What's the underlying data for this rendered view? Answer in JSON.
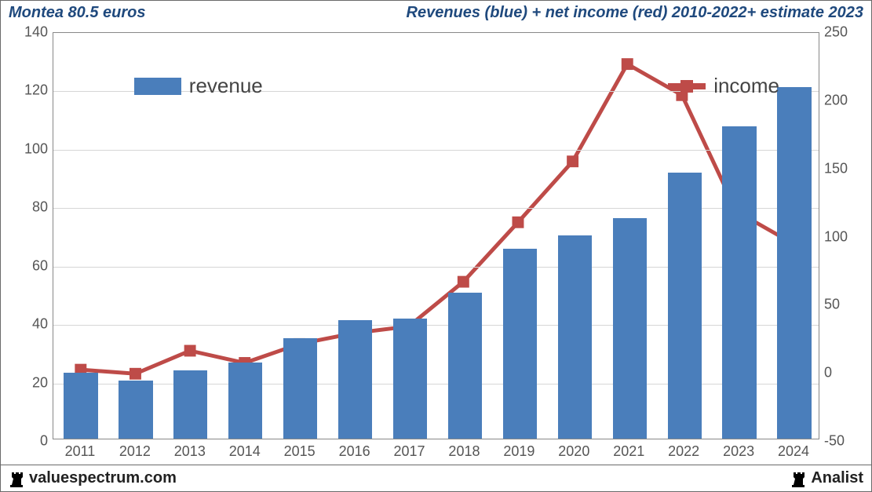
{
  "header": {
    "left": "Montea 80.5 euros",
    "right": "Revenues (blue) + net income (red) 2010-2022+ estimate 2023",
    "left_color": "#1f497d",
    "right_color": "#1f497d"
  },
  "chart": {
    "type": "bar+line",
    "background_color": "#ffffff",
    "grid_color": "#d6d6d6",
    "axis_color": "#888888",
    "label_color": "#555555",
    "label_fontsize": 18,
    "categories": [
      "2011",
      "2012",
      "2013",
      "2014",
      "2015",
      "2016",
      "2017",
      "2018",
      "2019",
      "2020",
      "2021",
      "2022",
      "2023",
      "2024"
    ],
    "left_axis": {
      "min": 0,
      "max": 140,
      "step": 20,
      "tick_labels": [
        "0",
        "20",
        "40",
        "60",
        "80",
        "100",
        "120",
        "140"
      ]
    },
    "right_axis": {
      "min": -50,
      "max": 250,
      "step": 50,
      "tick_labels": [
        "-50",
        "0",
        "50",
        "100",
        "150",
        "200",
        "250"
      ]
    },
    "revenue": {
      "values": [
        22.5,
        20,
        23.5,
        26,
        34.5,
        40.5,
        41,
        50,
        65,
        69.5,
        75.5,
        91,
        107,
        120.5
      ],
      "color": "#4a7ebb",
      "bar_width_ratio": 0.62,
      "legend_label": "revenue"
    },
    "income": {
      "values": [
        1,
        -2,
        15,
        6,
        20,
        28,
        33,
        66,
        110,
        155,
        227,
        204,
        118,
        95
      ],
      "line_color": "#be4b48",
      "line_width": 5,
      "marker_size": 15,
      "marker_color": "#be4b48",
      "legend_label": "income"
    },
    "legend": {
      "revenue_pos": {
        "left_pct": 10.5,
        "top_pct": 10
      },
      "income_pos": {
        "left_pct": 80,
        "top_pct": 10
      },
      "text_fontsize": 26,
      "text_color": "#444444"
    }
  },
  "footer": {
    "left": "valuespectrum.com",
    "right": "Analist",
    "color": "#222222"
  }
}
